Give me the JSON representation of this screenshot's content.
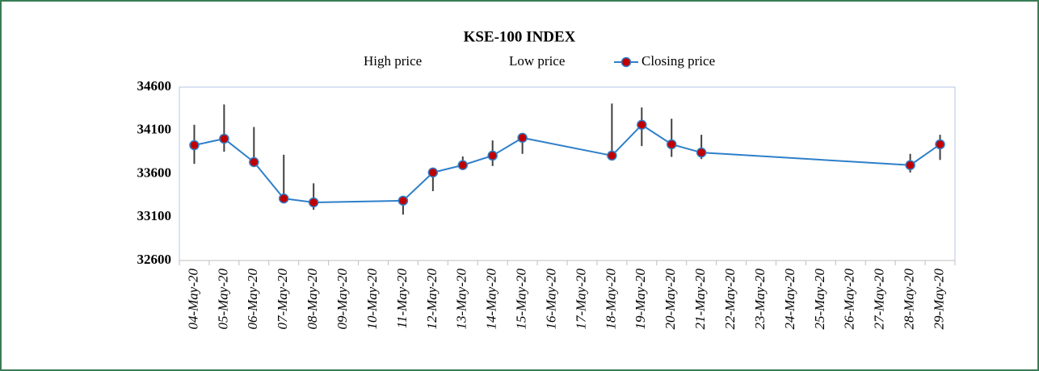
{
  "chart_data": {
    "type": "stock",
    "title": "KSE-100 INDEX",
    "categories": [
      "04-May-20",
      "05-May-20",
      "06-May-20",
      "07-May-20",
      "08-May-20",
      "09-May-20",
      "10-May-20",
      "11-May-20",
      "12-May-20",
      "13-May-20",
      "14-May-20",
      "15-May-20",
      "16-May-20",
      "17-May-20",
      "18-May-20",
      "19-May-20",
      "20-May-20",
      "21-May-20",
      "22-May-20",
      "23-May-20",
      "24-May-20",
      "25-May-20",
      "26-May-20",
      "27-May-20",
      "28-May-20",
      "29-May-20"
    ],
    "series": [
      {
        "name": "High price",
        "color": "#404040",
        "values": [
          34165,
          34400,
          34140,
          33820,
          33490,
          null,
          null,
          33290,
          33630,
          33800,
          33985,
          34015,
          null,
          null,
          34410,
          34365,
          34235,
          34050,
          null,
          null,
          null,
          null,
          null,
          null,
          33830,
          34050
        ]
      },
      {
        "name": "Low price",
        "color": "#404040",
        "values": [
          33715,
          33855,
          33690,
          33280,
          33185,
          null,
          null,
          33130,
          33400,
          33650,
          33690,
          33830,
          null,
          null,
          33795,
          33920,
          33795,
          33770,
          null,
          null,
          null,
          null,
          null,
          null,
          33615,
          33760
        ]
      },
      {
        "name": "Closing price",
        "color": "#2e7fc9",
        "marker_color": "#c00000",
        "values": [
          33930,
          34005,
          33735,
          33315,
          33270,
          null,
          null,
          33290,
          33615,
          33700,
          33810,
          34015,
          null,
          null,
          33810,
          34165,
          33940,
          33845,
          null,
          null,
          null,
          null,
          null,
          null,
          33700,
          33940
        ]
      }
    ],
    "ylim": [
      32600,
      34600
    ],
    "yticks": [
      32600,
      33100,
      33600,
      34100,
      34600
    ],
    "grid": false,
    "legend": "top"
  }
}
